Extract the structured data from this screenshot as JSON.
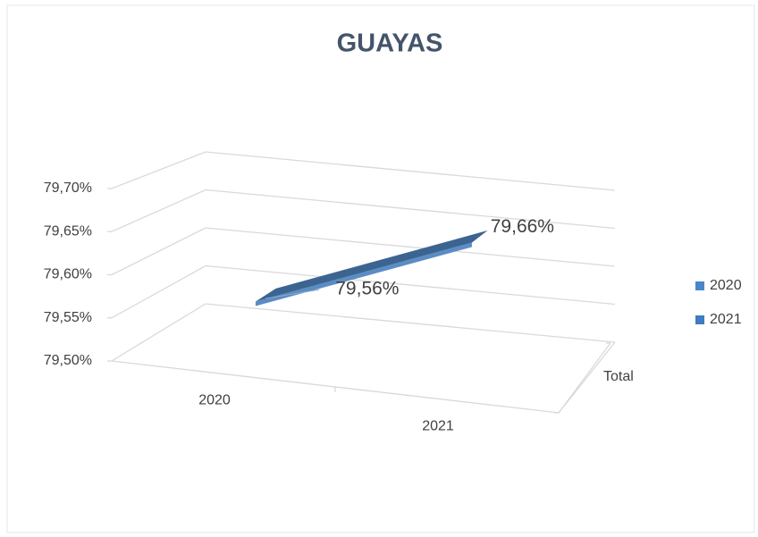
{
  "chart_data": {
    "type": "line3d",
    "title": "GUAYAS",
    "categories": [
      "2020",
      "2021"
    ],
    "category_colors": [
      "#4a86c8",
      "#3f7cc0"
    ],
    "series": [
      {
        "name": "Total",
        "color": "#3c6490",
        "values": [
          79.56,
          79.66
        ],
        "value_labels": [
          "79,56%",
          "79,66%"
        ]
      }
    ],
    "ylim": [
      79.5,
      79.7
    ],
    "yticks": [
      {
        "value": 79.5,
        "label": "79,50%"
      },
      {
        "value": 79.55,
        "label": "79,55%"
      },
      {
        "value": 79.6,
        "label": "79,60%"
      },
      {
        "value": 79.65,
        "label": "79,65%"
      },
      {
        "value": 79.7,
        "label": "79,70%"
      }
    ],
    "grid": true,
    "legend": "right"
  }
}
